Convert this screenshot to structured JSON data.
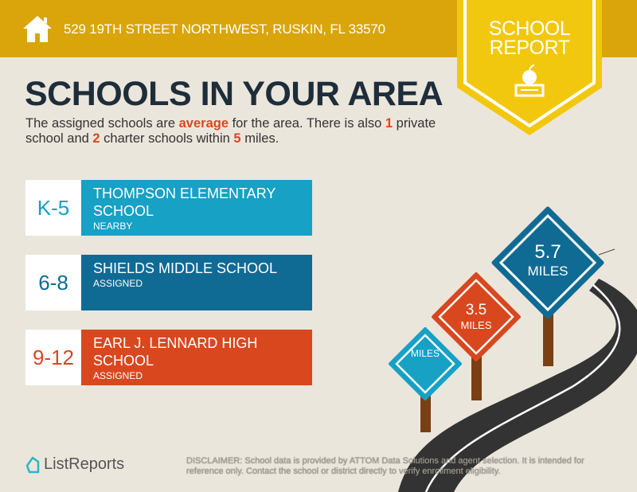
{
  "header": {
    "address": "529 19TH STREET NORTHWEST, RUSKIN, FL 33570",
    "icon": "house-icon"
  },
  "badge": {
    "line1": "SCHOOL",
    "line2": "REPORT",
    "icon": "apple-on-book-icon"
  },
  "title": "SCHOOLS IN YOUR AREA",
  "intro": {
    "p1": "The assigned schools are ",
    "rating": "average",
    "p2": " for the area. There is also ",
    "private_count": "1",
    "p3": " private school and ",
    "charter_count": "2",
    "p4": " charter schools within ",
    "radius": "5",
    "p5": " miles."
  },
  "schools": [
    {
      "grade": "K-5",
      "name": "THOMPSON ELEMENTARY SCHOOL",
      "status": "NEARBY",
      "color": "#16a1c5"
    },
    {
      "grade": "6-8",
      "name": "SHIELDS MIDDLE SCHOOL",
      "status": "ASSIGNED",
      "color": "#0f6b94"
    },
    {
      "grade": "9-12",
      "name": "EARL J. LENNARD HIGH SCHOOL",
      "status": "ASSIGNED",
      "color": "#d9471f"
    }
  ],
  "signs": [
    {
      "value": "",
      "unit": "MILES",
      "color": "#16a1c5"
    },
    {
      "value": "3.5",
      "unit": "MILES",
      "color": "#d9471f"
    },
    {
      "value": "5.7",
      "unit": "MILES",
      "color": "#0f6b94"
    }
  ],
  "footer": {
    "logo": "ListReports",
    "disclaimer_label": "DISCLAIMER:",
    "disclaimer": " School data is provided by ATTOM Data Solutions and agent selection. It is intended for reference only. Contact the school or district directly to verify enrollment eligibility."
  }
}
